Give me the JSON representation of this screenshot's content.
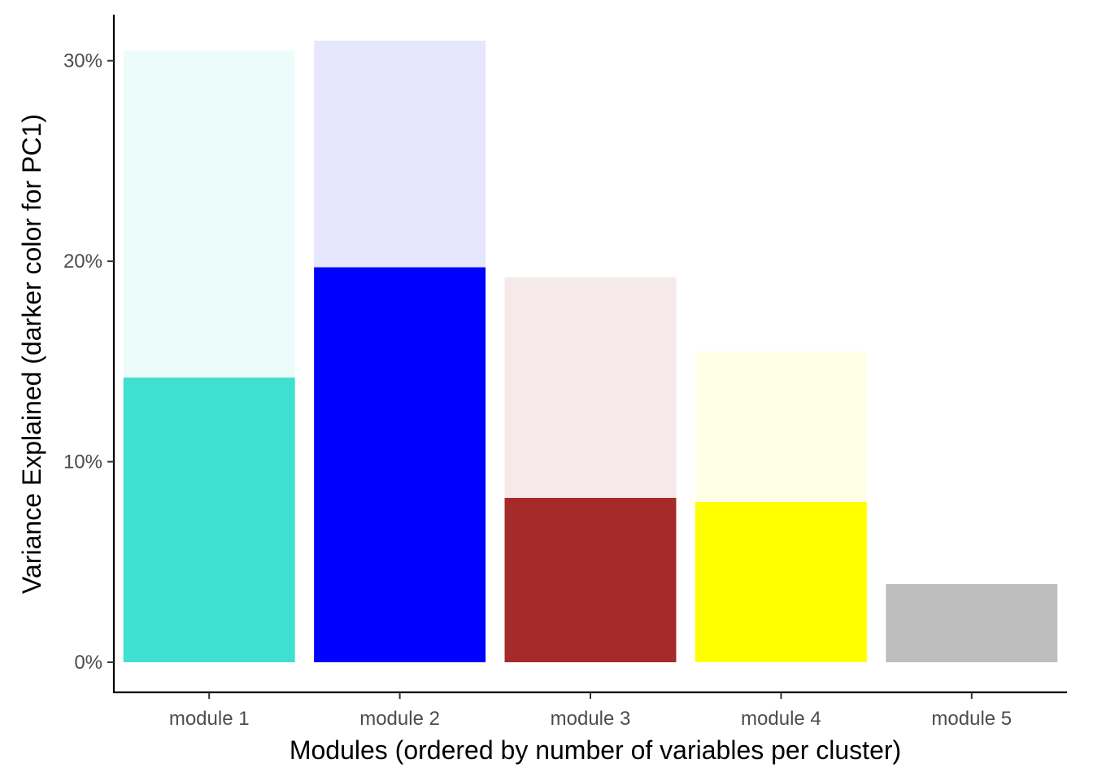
{
  "chart_data": {
    "type": "bar",
    "stacked": true,
    "categories": [
      "module 1",
      "module 2",
      "module 3",
      "module 4",
      "module 5"
    ],
    "series": [
      {
        "values": [
          14.2,
          19.7,
          8.2,
          8.0,
          3.9
        ],
        "colors": [
          "#40E0D0",
          "#0000FF",
          "#A52A2A",
          "#FFFF00",
          "#BEBEBE"
        ]
      },
      {
        "values": [
          16.3,
          11.3,
          11.0,
          7.5,
          0.0
        ],
        "colors": [
          "#ECFCFA",
          "#E6E6FF",
          "#F6E9E9",
          "#FFFFE6",
          "#F2F2F2"
        ]
      }
    ],
    "xlabel": "Modules (ordered by number of variables per cluster)",
    "ylabel": "Variance Explained (darker color for PC1)",
    "ylim": [
      -1.5,
      32.3
    ],
    "yticks": [
      0,
      10,
      20,
      30
    ],
    "ytick_labels": [
      "0%",
      "10%",
      "20%",
      "30%"
    ],
    "grid": false,
    "legend": "none"
  }
}
